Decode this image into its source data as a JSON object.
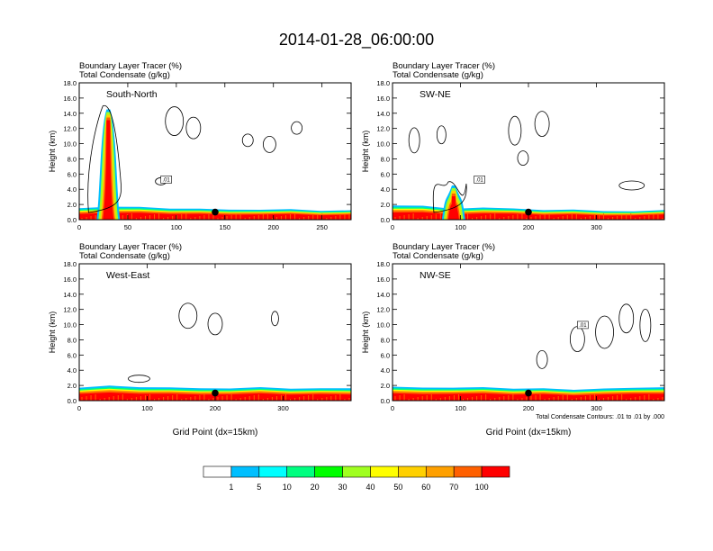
{
  "title": "2014-01-28_06:00:00",
  "colors": {
    "bands": [
      "#ffffff",
      "#1e90ff",
      "#00bfff",
      "#00ffff",
      "#00ff80",
      "#00ff00",
      "#a0ff20",
      "#ffff00",
      "#ffd000",
      "#ffa000",
      "#ff6000",
      "#ff0000"
    ]
  },
  "colorbar": {
    "labels": [
      "1",
      "5",
      "10",
      "20",
      "30",
      "40",
      "50",
      "60",
      "70",
      "100"
    ]
  },
  "chart_data": [
    {
      "type": "heatmap",
      "panel": "South-North",
      "title_lines": [
        "Boundary Layer Tracer    (%)",
        "Total Condensate    (g/kg)"
      ],
      "ylabel": "Height (km)",
      "xlabel": "",
      "xlim": [
        0,
        280
      ],
      "ylim": [
        0,
        18
      ],
      "xticks": [
        "0",
        "50",
        "100",
        "150",
        "200",
        "250"
      ],
      "yticks": [
        "0.0",
        "2.0",
        "4.0",
        "6.0",
        "8.0",
        "10.0",
        "12.0",
        "14.0",
        "16.0",
        "18.0"
      ],
      "bl_top_km": [
        1.6,
        1.7,
        1.6,
        1.5,
        1.4,
        1.4,
        1.3,
        1.3,
        1.2,
        1.2
      ],
      "plume": {
        "x": 30,
        "top_km": 14.5
      },
      "marker": {
        "x": 140,
        "y_km": 1.0
      },
      "contour_label": ".01"
    },
    {
      "type": "heatmap",
      "panel": "SW-NE",
      "title_lines": [
        "Boundary Layer Tracer    (%)",
        "Total Condensate    (g/kg)"
      ],
      "ylabel": "Height (km)",
      "xlabel": "",
      "xlim": [
        0,
        400
      ],
      "ylim": [
        0,
        18
      ],
      "xticks": [
        "0",
        "100",
        "200",
        "300"
      ],
      "yticks": [
        "0.0",
        "2.0",
        "4.0",
        "6.0",
        "8.0",
        "10.0",
        "12.0",
        "14.0",
        "16.0",
        "18.0"
      ],
      "bl_top_km": [
        1.9,
        1.8,
        1.5,
        1.6,
        1.4,
        1.3,
        1.3,
        1.2,
        1.1,
        1.2
      ],
      "plume": {
        "x": 90,
        "top_km": 4.5
      },
      "marker": {
        "x": 200,
        "y_km": 1.0
      },
      "contour_label": ".01"
    },
    {
      "type": "heatmap",
      "panel": "West-East",
      "title_lines": [
        "Boundary Layer Tracer    (%)",
        "Total Condensate    (g/kg)"
      ],
      "ylabel": "Height (km)",
      "xlabel": "Grid Point (dx=15km)",
      "xlim": [
        0,
        400
      ],
      "ylim": [
        0,
        18
      ],
      "xticks": [
        "0",
        "100",
        "200",
        "300"
      ],
      "yticks": [
        "0.0",
        "2.0",
        "4.0",
        "6.0",
        "8.0",
        "10.0",
        "12.0",
        "14.0",
        "16.0",
        "18.0"
      ],
      "bl_top_km": [
        1.7,
        1.9,
        1.8,
        1.7,
        1.7,
        1.6,
        1.7,
        1.6,
        1.6,
        1.7
      ],
      "plume": null,
      "marker": {
        "x": 200,
        "y_km": 1.0
      },
      "contour_label": ""
    },
    {
      "type": "heatmap",
      "panel": "NW-SE",
      "title_lines": [
        "Boundary Layer Tracer    (%)",
        "Total Condensate    (g/kg)"
      ],
      "ylabel": "Height (km)",
      "xlabel": "Grid Point (dx=15km)",
      "xlim": [
        0,
        400
      ],
      "ylim": [
        0,
        18
      ],
      "xticks": [
        "0",
        "100",
        "200",
        "300"
      ],
      "yticks": [
        "0.0",
        "2.0",
        "4.0",
        "6.0",
        "8.0",
        "10.0",
        "12.0",
        "14.0",
        "16.0",
        "18.0"
      ],
      "bl_top_km": [
        1.8,
        1.8,
        1.7,
        1.7,
        1.6,
        1.6,
        1.5,
        1.6,
        1.6,
        1.8
      ],
      "plume": null,
      "marker": {
        "x": 200,
        "y_km": 1.0
      },
      "contour_label": ".01",
      "footnote": "Total Condensate Contours: .01 to .01 by .000"
    }
  ]
}
